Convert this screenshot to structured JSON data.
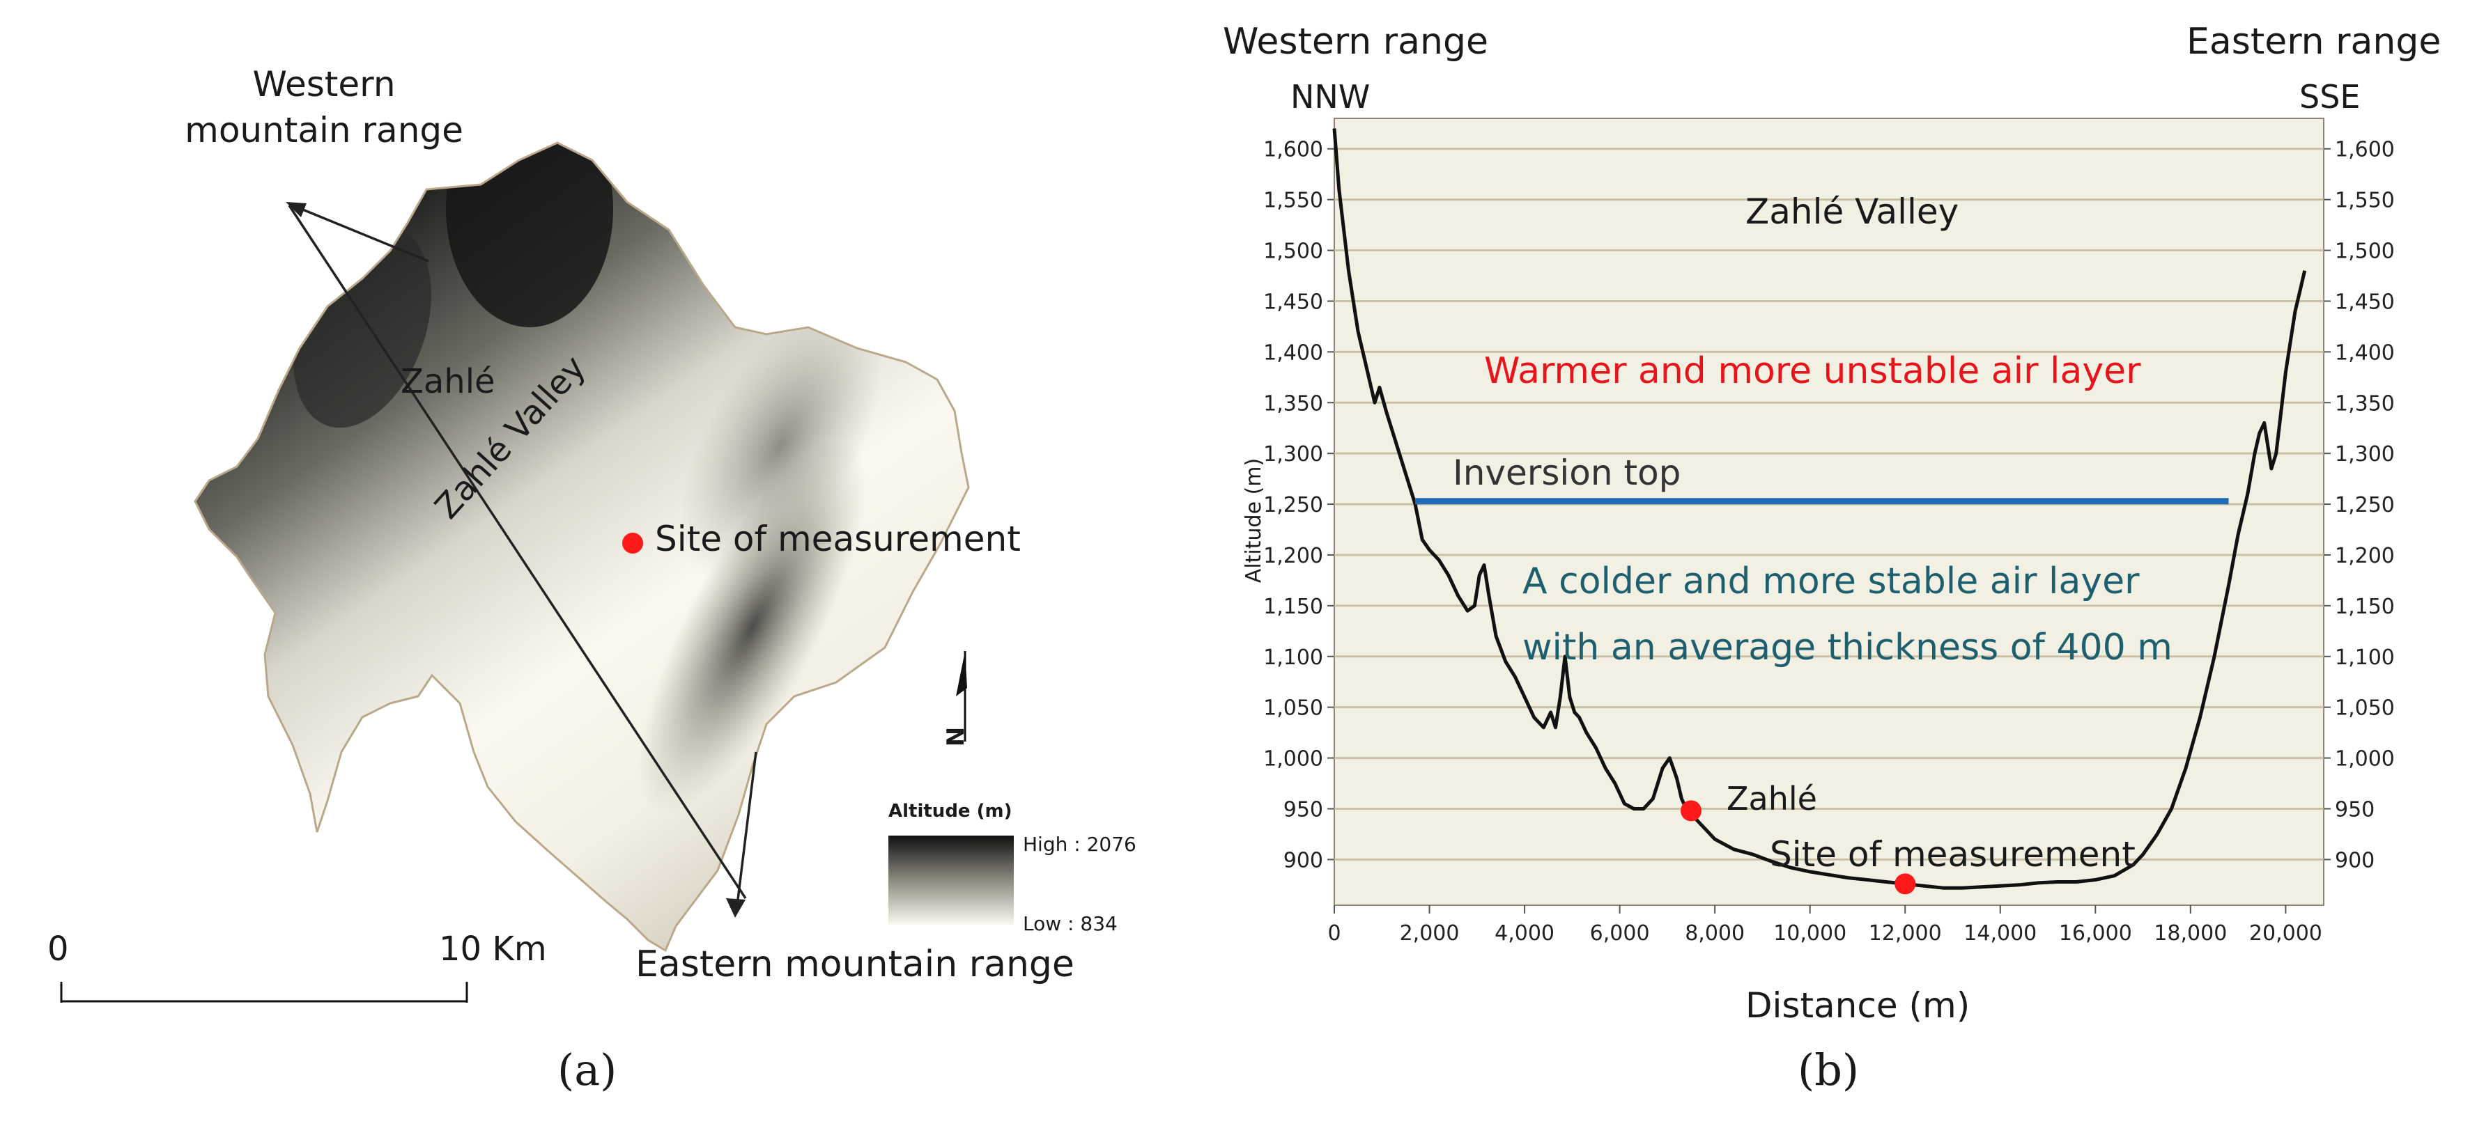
{
  "panel_a": {
    "label": "(a)",
    "labels": {
      "western_range": [
        "Western",
        "mountain range"
      ],
      "eastern_range": "Eastern mountain range",
      "town": "Zahlé",
      "valley": "Zahlé Valley",
      "site": "Site of measurement"
    },
    "scale_bar": {
      "start": "0",
      "end": "10 Km"
    },
    "north_arrow": "N",
    "legend": {
      "title": "Altitude (m)",
      "high": "High : 2076",
      "low": "Low : 834"
    },
    "colors": {
      "marker": "#ff1a1a",
      "line": "#222222"
    }
  },
  "panel_b": {
    "label": "(b)",
    "corner_labels": {
      "top_left": "Western range",
      "top_right": "Eastern range",
      "left_dir": "NNW",
      "right_dir": "SSE"
    },
    "annotations": {
      "valley": "Zahlé Valley",
      "warm_layer": "Warmer and more unstable air layer",
      "inversion": "Inversion top",
      "cold_layer_1": "A colder and more stable air layer",
      "cold_layer_2": "with an average thickness of 400 m",
      "town": "Zahlé",
      "site": "Site of measurement"
    },
    "colors": {
      "background": "#f2efe3",
      "grid": "#c9c0a6",
      "profile": "#111111",
      "inversion": "#1f6bb5",
      "warm_text": "#e8141b",
      "cold_text": "#1d5f6e",
      "marker": "#ff1a1a"
    }
  },
  "chart_data": {
    "type": "line",
    "xlabel": "Distance (m)",
    "ylabel": "Altitude (m)",
    "xlim": [
      0,
      20800
    ],
    "ylim": [
      855,
      1630
    ],
    "x_ticks": [
      0,
      2000,
      4000,
      6000,
      8000,
      10000,
      12000,
      14000,
      16000,
      18000,
      20000
    ],
    "x_tick_labels": [
      "0",
      "2,000",
      "4,000",
      "6,000",
      "8,000",
      "10,000",
      "12,000",
      "14,000",
      "16,000",
      "18,000",
      "20,000"
    ],
    "y_ticks": [
      900,
      950,
      1000,
      1050,
      1100,
      1150,
      1200,
      1250,
      1300,
      1350,
      1400,
      1450,
      1500,
      1550,
      1600
    ],
    "y_tick_labels": [
      "900",
      "950",
      "1,000",
      "1,050",
      "1,100",
      "1,150",
      "1,200",
      "1,250",
      "1,300",
      "1,350",
      "1,400",
      "1,450",
      "1,500",
      "1,550",
      "1,600"
    ],
    "grid": true,
    "series": [
      {
        "x": [
          0,
          100,
          300,
          500,
          700,
          850,
          950,
          1100,
          1300,
          1500,
          1700,
          1850,
          2000,
          2200,
          2400,
          2600,
          2800,
          2950,
          3050,
          3150,
          3250,
          3400,
          3600,
          3800,
          4000,
          4200,
          4400,
          4550,
          4650,
          4750,
          4850,
          4950,
          5050,
          5150,
          5300,
          5500,
          5700,
          5900,
          6100,
          6300,
          6500,
          6700,
          6900,
          7050,
          7200,
          7300,
          7400,
          7500,
          7700,
          8000,
          8400,
          8800,
          9200,
          9600,
          10000,
          10400,
          10800,
          11200,
          11600,
          12000,
          12400,
          12800,
          13200,
          13600,
          14000,
          14400,
          14800,
          15200,
          15600,
          16000,
          16400,
          16800,
          17000,
          17300,
          17600,
          17900,
          18200,
          18500,
          18800,
          19000,
          19200,
          19350,
          19450,
          19550,
          19650,
          19700,
          19800,
          19900,
          20000,
          20100,
          20200,
          20300,
          20400
        ],
        "y": [
          1620,
          1560,
          1480,
          1420,
          1380,
          1350,
          1365,
          1340,
          1310,
          1280,
          1250,
          1215,
          1205,
          1195,
          1180,
          1160,
          1145,
          1150,
          1180,
          1190,
          1160,
          1120,
          1095,
          1080,
          1060,
          1040,
          1030,
          1045,
          1030,
          1060,
          1100,
          1060,
          1045,
          1040,
          1025,
          1010,
          990,
          975,
          955,
          950,
          950,
          960,
          990,
          1000,
          980,
          960,
          950,
          945,
          935,
          920,
          910,
          905,
          898,
          892,
          888,
          885,
          882,
          880,
          878,
          876,
          874,
          872,
          872,
          873,
          874,
          875,
          877,
          878,
          878,
          880,
          884,
          895,
          905,
          925,
          950,
          990,
          1040,
          1100,
          1170,
          1220,
          1260,
          1300,
          1320,
          1330,
          1300,
          1285,
          1300,
          1340,
          1380,
          1410,
          1440,
          1460,
          1480
        ]
      }
    ],
    "inversion_line": {
      "x": [
        1700,
        18800
      ],
      "y": 1253
    },
    "points": [
      {
        "label": "Zahlé",
        "x": 7500,
        "y": 948
      },
      {
        "label": "Site of measurement",
        "x": 12000,
        "y": 876
      }
    ]
  }
}
